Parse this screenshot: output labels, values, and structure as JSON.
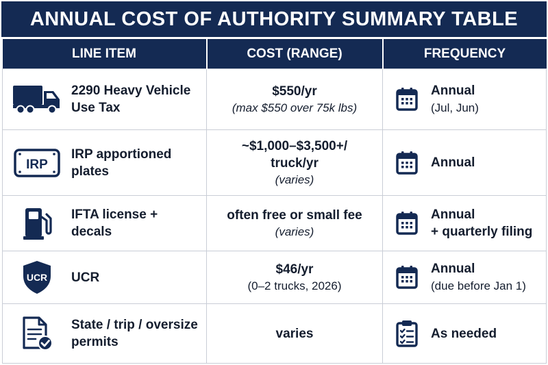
{
  "title": "ANNUAL COST OF AUTHORITY SUMMARY TABLE",
  "headers": {
    "line_item": "LINE ITEM",
    "cost": "COST (RANGE)",
    "frequency": "FREQUENCY"
  },
  "colors": {
    "navy": "#142a53",
    "border": "#c9cdd6",
    "text": "#141d2e"
  },
  "rows": [
    {
      "icon": "truck-icon",
      "item": "2290 Heavy Vehicle Use Tax",
      "cost_main": "$550/yr",
      "cost_sub": "(max $550 over 75k lbs)",
      "freq_icon": "calendar-icon",
      "freq_main": "Annual",
      "freq_sub": "(Jul, Jun)"
    },
    {
      "icon": "irp-plate-icon",
      "icon_text": "IRP",
      "item": "IRP apportioned plates",
      "cost_main": "~$1,000–$3,500+/ truck/yr",
      "cost_sub": "(varies)",
      "freq_icon": "calendar-icon",
      "freq_main": "Annual",
      "freq_sub": ""
    },
    {
      "icon": "fuel-pump-icon",
      "item": "IFTA license + decals",
      "cost_main": "often free or small fee",
      "cost_sub": "(varies)",
      "freq_icon": "calendar-icon",
      "freq_main": "Annual",
      "freq_sub": "+ quarterly filing"
    },
    {
      "icon": "ucr-shield-icon",
      "icon_text": "UCR",
      "item": "UCR",
      "cost_main": "$46/yr",
      "cost_sub": "(0–2 trucks, 2026)",
      "freq_icon": "calendar-icon",
      "freq_main": "Annual",
      "freq_sub": "(due before Jan 1)"
    },
    {
      "icon": "document-check-icon",
      "item": "State / trip / oversize permits",
      "cost_main": "varies",
      "cost_sub": "",
      "freq_icon": "checklist-icon",
      "freq_main": "As needed",
      "freq_sub": ""
    }
  ]
}
